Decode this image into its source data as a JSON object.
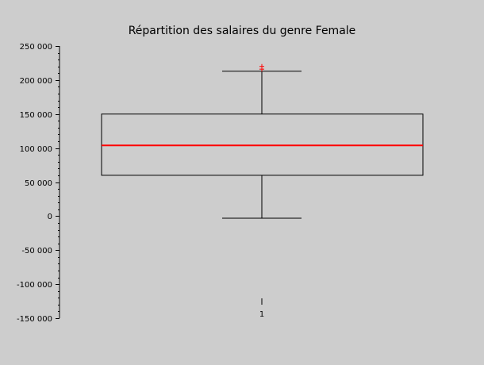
{
  "chart_data": {
    "type": "box",
    "title": "Répartition des salaires du genre Female",
    "xlabel": "",
    "ylabel": "",
    "categories": [
      "1"
    ],
    "ylim": [
      -150000,
      250000
    ],
    "yticks": [
      250000,
      200000,
      150000,
      100000,
      50000,
      0,
      -50000,
      -100000,
      -150000
    ],
    "ytick_labels": [
      "250 000",
      "200 000",
      "150 000",
      "100 000",
      "50 000",
      "0",
      "-50 000",
      "-100 000",
      "-150 000"
    ],
    "boxes": [
      {
        "category": "1",
        "whisker_low": -3000,
        "q1": 60000,
        "median": 104000,
        "q3": 150000,
        "whisker_high": 213000,
        "outliers": [
          216000,
          220000
        ]
      }
    ],
    "grid": false,
    "colors": {
      "box": "#000000",
      "median": "#ff0000",
      "outlier": "#ff0000",
      "background": "#cdcdcd"
    }
  }
}
